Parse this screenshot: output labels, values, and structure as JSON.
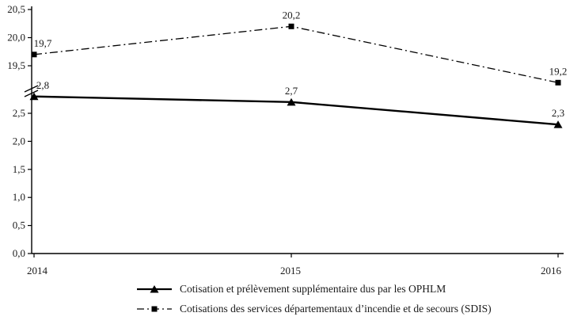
{
  "chart_data": {
    "type": "line",
    "title": "",
    "xlabel": "",
    "ylabel": "",
    "categories": [
      "2014",
      "2015",
      "2016"
    ],
    "series": [
      {
        "name": "Cotisation et prélèvement supplémentaire dus par les OPHLM",
        "values": [
          2.8,
          2.7,
          2.3
        ],
        "point_labels": [
          "2,8",
          "2,7",
          "2,3"
        ],
        "marker": "triangle",
        "line_style": "solid"
      },
      {
        "name": "Cotisations des services départementaux d’incendie et de secours (SDIS)",
        "values": [
          19.7,
          20.2,
          19.2
        ],
        "point_labels": [
          "19,7",
          "20,2",
          "19,2"
        ],
        "marker": "square",
        "line_style": "dash-dot"
      }
    ],
    "y_axis": {
      "broken": true,
      "lower_range": [
        0,
        2.5
      ],
      "upper_range": [
        19.5,
        20.5
      ],
      "lower_tick_values": [
        0,
        0.5,
        1,
        1.5,
        2,
        2.5
      ],
      "lower_tick_labels": [
        "0,0",
        "0,5",
        "1,0",
        "1,5",
        "2,0",
        "2,5"
      ],
      "upper_tick_values": [
        19.5,
        20,
        20.5
      ],
      "upper_tick_labels": [
        "19,5",
        "20,0",
        "20,5"
      ]
    },
    "grid": false,
    "legend_position": "bottom",
    "colors": {
      "series": "#000000",
      "background": "#ffffff",
      "text": "#1a1a1a"
    }
  }
}
